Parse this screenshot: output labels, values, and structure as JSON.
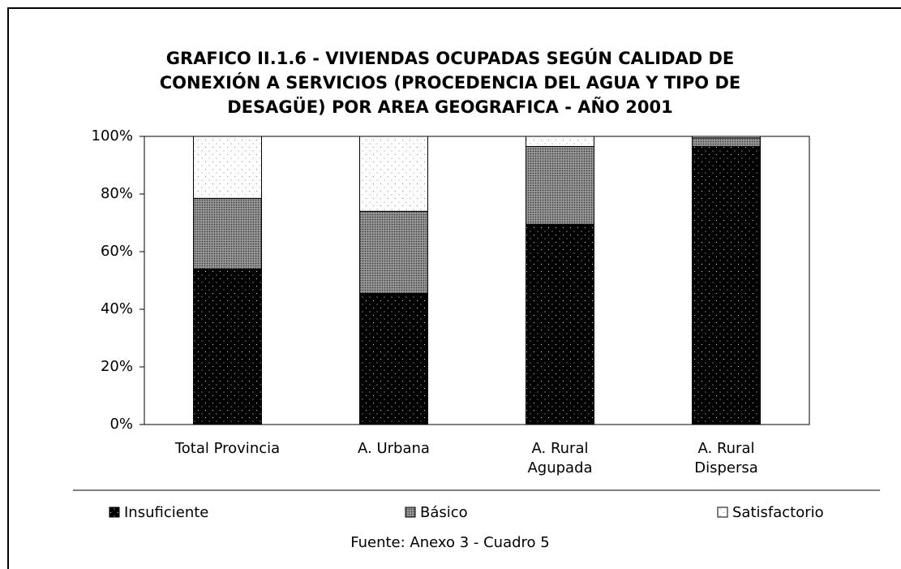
{
  "chart_data": {
    "type": "bar",
    "stacked": true,
    "title": [
      "GRAFICO II.1.6 - VIVIENDAS OCUPADAS SEGÚN CALIDAD DE",
      "CONEXIÓN A SERVICIOS (PROCEDENCIA DEL AGUA Y TIPO DE",
      "DESAGÜE) POR  AREA GEOGRAFICA - AÑO 2001"
    ],
    "categories": [
      "Total Provincia",
      "A. Urbana",
      "A. Rural\nAgupada",
      "A. Rural\nDispersa"
    ],
    "series": [
      {
        "name": "Insuficiente",
        "color": "#000000",
        "values": [
          54,
          45.5,
          69.5,
          96.5
        ]
      },
      {
        "name": "Básico",
        "color": "#808080",
        "values": [
          24.5,
          28.5,
          27,
          3
        ]
      },
      {
        "name": "Satisfactorio",
        "color": "#ffffff",
        "values": [
          21.5,
          26,
          3.5,
          0.5
        ]
      }
    ],
    "ylim": [
      0,
      100
    ],
    "yticks": [
      {
        "value": 0,
        "label": "0%"
      },
      {
        "value": 20,
        "label": "20%"
      },
      {
        "value": 40,
        "label": "40%"
      },
      {
        "value": 60,
        "label": "60%"
      },
      {
        "value": 80,
        "label": "80%"
      },
      {
        "value": 100,
        "label": "100%"
      }
    ],
    "legend": "bottom",
    "source": "Fuente: Anexo 3 - Cuadro 5"
  }
}
